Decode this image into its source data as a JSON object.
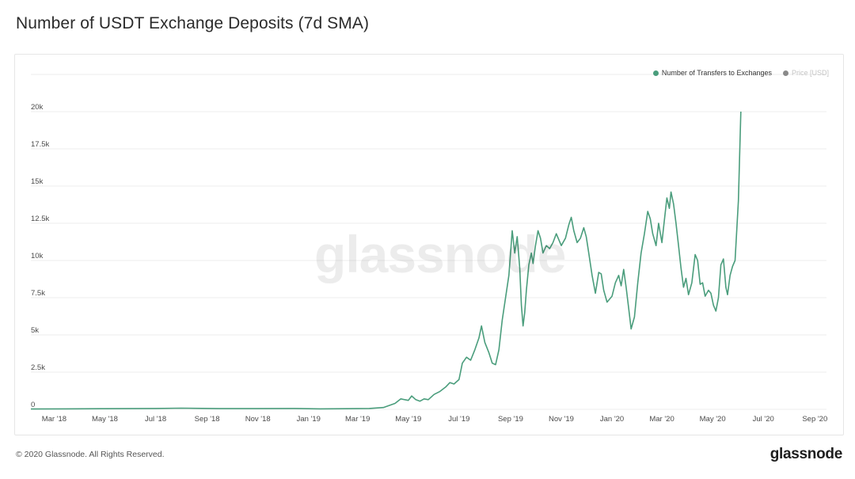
{
  "title": "Number of USDT Exchange Deposits (7d SMA)",
  "footer": {
    "copyright": "© 2020 Glassnode. All Rights Reserved.",
    "logo": "glassnode"
  },
  "watermark": "glassnode",
  "legend": {
    "series_label": "Number of Transfers to Exchanges",
    "price_label": "Price [USD]"
  },
  "colors": {
    "series": "#4a9d7c",
    "price_dot": "#8a8a8a",
    "grid": "#eeeeee"
  },
  "chart_data": {
    "type": "line",
    "title": "Number of USDT Exchange Deposits (7d SMA)",
    "xlabel": "",
    "ylabel": "",
    "x_range": [
      "2018-02-01",
      "2020-09-15"
    ],
    "ylim": [
      0,
      20000
    ],
    "grid": true,
    "legend_position": "top-right",
    "x_tick_labels": [
      "Mar '18",
      "May '18",
      "Jul '18",
      "Sep '18",
      "Nov '18",
      "Jan '19",
      "Mar '19",
      "May '19",
      "Jul '19",
      "Sep '19",
      "Nov '19",
      "Jan '20",
      "Mar '20",
      "May '20",
      "Jul '20",
      "Sep '20"
    ],
    "x_tick_dates": [
      "2018-03-01",
      "2018-05-01",
      "2018-07-01",
      "2018-09-01",
      "2018-11-01",
      "2019-01-01",
      "2019-03-01",
      "2019-05-01",
      "2019-07-01",
      "2019-09-01",
      "2019-11-01",
      "2020-01-01",
      "2020-03-01",
      "2020-05-01",
      "2020-07-01",
      "2020-09-01"
    ],
    "y_ticks": [
      0,
      2500,
      5000,
      7500,
      10000,
      12500,
      15000,
      17500,
      20000
    ],
    "y_tick_labels": [
      "0",
      "2.5k",
      "5k",
      "7.5k",
      "10k",
      "12.5k",
      "15k",
      "17.5k",
      "20k"
    ],
    "series": [
      {
        "name": "Number of Transfers to Exchanges",
        "points": [
          [
            "2018-02-01",
            20
          ],
          [
            "2018-03-15",
            30
          ],
          [
            "2018-05-01",
            40
          ],
          [
            "2018-07-01",
            60
          ],
          [
            "2018-08-01",
            80
          ],
          [
            "2018-09-15",
            50
          ],
          [
            "2018-11-01",
            50
          ],
          [
            "2018-12-15",
            60
          ],
          [
            "2019-01-15",
            30
          ],
          [
            "2019-02-15",
            40
          ],
          [
            "2019-03-15",
            60
          ],
          [
            "2019-04-01",
            120
          ],
          [
            "2019-04-15",
            400
          ],
          [
            "2019-04-22",
            700
          ],
          [
            "2019-05-01",
            600
          ],
          [
            "2019-05-05",
            900
          ],
          [
            "2019-05-10",
            650
          ],
          [
            "2019-05-15",
            550
          ],
          [
            "2019-05-20",
            700
          ],
          [
            "2019-05-25",
            650
          ],
          [
            "2019-06-01",
            1000
          ],
          [
            "2019-06-08",
            1200
          ],
          [
            "2019-06-15",
            1500
          ],
          [
            "2019-06-20",
            1800
          ],
          [
            "2019-06-25",
            1700
          ],
          [
            "2019-07-01",
            2000
          ],
          [
            "2019-07-05",
            3100
          ],
          [
            "2019-07-10",
            3500
          ],
          [
            "2019-07-15",
            3300
          ],
          [
            "2019-07-20",
            4000
          ],
          [
            "2019-07-25",
            4800
          ],
          [
            "2019-07-28",
            5600
          ],
          [
            "2019-08-01",
            4500
          ],
          [
            "2019-08-06",
            3800
          ],
          [
            "2019-08-10",
            3100
          ],
          [
            "2019-08-14",
            3000
          ],
          [
            "2019-08-18",
            4000
          ],
          [
            "2019-08-22",
            6000
          ],
          [
            "2019-08-26",
            7500
          ],
          [
            "2019-08-30",
            9000
          ],
          [
            "2019-09-03",
            12000
          ],
          [
            "2019-09-06",
            10500
          ],
          [
            "2019-09-09",
            11600
          ],
          [
            "2019-09-12",
            9500
          ],
          [
            "2019-09-14",
            7000
          ],
          [
            "2019-09-16",
            5600
          ],
          [
            "2019-09-18",
            6500
          ],
          [
            "2019-09-20",
            8000
          ],
          [
            "2019-09-23",
            9700
          ],
          [
            "2019-09-26",
            10500
          ],
          [
            "2019-09-28",
            9800
          ],
          [
            "2019-10-01",
            11000
          ],
          [
            "2019-10-04",
            12000
          ],
          [
            "2019-10-07",
            11500
          ],
          [
            "2019-10-10",
            10500
          ],
          [
            "2019-10-14",
            11000
          ],
          [
            "2019-10-18",
            10800
          ],
          [
            "2019-10-22",
            11200
          ],
          [
            "2019-10-26",
            11800
          ],
          [
            "2019-11-01",
            11000
          ],
          [
            "2019-11-06",
            11500
          ],
          [
            "2019-11-10",
            12400
          ],
          [
            "2019-11-13",
            12900
          ],
          [
            "2019-11-16",
            12000
          ],
          [
            "2019-11-20",
            11200
          ],
          [
            "2019-11-24",
            11500
          ],
          [
            "2019-11-28",
            12200
          ],
          [
            "2019-12-01",
            11600
          ],
          [
            "2019-12-04",
            10500
          ],
          [
            "2019-12-08",
            9000
          ],
          [
            "2019-12-12",
            7800
          ],
          [
            "2019-12-16",
            9200
          ],
          [
            "2019-12-19",
            9100
          ],
          [
            "2019-12-22",
            8000
          ],
          [
            "2019-12-26",
            7200
          ],
          [
            "2020-01-01",
            7600
          ],
          [
            "2020-01-05",
            8500
          ],
          [
            "2020-01-09",
            9000
          ],
          [
            "2020-01-12",
            8300
          ],
          [
            "2020-01-15",
            9400
          ],
          [
            "2020-01-18",
            8200
          ],
          [
            "2020-01-21",
            6800
          ],
          [
            "2020-01-24",
            5400
          ],
          [
            "2020-01-28",
            6200
          ],
          [
            "2020-02-01",
            8500
          ],
          [
            "2020-02-05",
            10500
          ],
          [
            "2020-02-09",
            11800
          ],
          [
            "2020-02-13",
            13300
          ],
          [
            "2020-02-16",
            12800
          ],
          [
            "2020-02-19",
            11800
          ],
          [
            "2020-02-23",
            11000
          ],
          [
            "2020-02-26",
            12500
          ],
          [
            "2020-03-01",
            11200
          ],
          [
            "2020-03-04",
            12700
          ],
          [
            "2020-03-07",
            14200
          ],
          [
            "2020-03-10",
            13500
          ],
          [
            "2020-03-12",
            14600
          ],
          [
            "2020-03-15",
            13800
          ],
          [
            "2020-03-18",
            12500
          ],
          [
            "2020-03-21",
            11000
          ],
          [
            "2020-03-24",
            9500
          ],
          [
            "2020-03-27",
            8200
          ],
          [
            "2020-03-30",
            8800
          ],
          [
            "2020-04-02",
            7700
          ],
          [
            "2020-04-06",
            8500
          ],
          [
            "2020-04-10",
            10400
          ],
          [
            "2020-04-13",
            10000
          ],
          [
            "2020-04-16",
            8400
          ],
          [
            "2020-04-19",
            8500
          ],
          [
            "2020-04-22",
            7600
          ],
          [
            "2020-04-26",
            8000
          ],
          [
            "2020-04-29",
            7800
          ],
          [
            "2020-05-02",
            7000
          ],
          [
            "2020-05-05",
            6600
          ],
          [
            "2020-05-08",
            7500
          ],
          [
            "2020-05-11",
            9700
          ],
          [
            "2020-05-14",
            10100
          ],
          [
            "2020-05-17",
            8200
          ],
          [
            "2020-05-19",
            7700
          ],
          [
            "2020-05-22",
            9000
          ],
          [
            "2020-05-25",
            9600
          ],
          [
            "2020-05-28",
            10000
          ],
          [
            "2020-06-01",
            14000
          ],
          [
            "2020-06-04",
            20000
          ]
        ]
      }
    ]
  }
}
